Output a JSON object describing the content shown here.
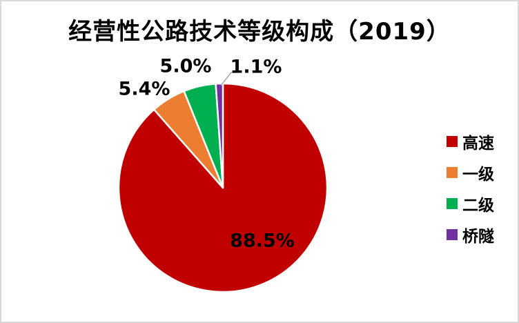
{
  "chart_data": {
    "type": "pie",
    "title": "经营性公路技术等级构成（2019）",
    "unit": "%",
    "slices": [
      {
        "name": "高速",
        "value": 88.5,
        "label": "88.5%",
        "color": "#C00000"
      },
      {
        "name": "一级",
        "value": 5.4,
        "label": "5.4%",
        "color": "#ED7D31"
      },
      {
        "name": "二级",
        "value": 5.0,
        "label": "5.0%",
        "color": "#00B050"
      },
      {
        "name": "桥隧",
        "value": 1.1,
        "label": "1.1%",
        "color": "#7030A0"
      }
    ],
    "legend": {
      "position": "right",
      "items": [
        "高速",
        "一级",
        "二级",
        "桥隧"
      ]
    },
    "layout": {
      "start_angle_deg": 0,
      "direction": "clockwise",
      "center": [
        321,
        270
      ],
      "radius": 151,
      "slice_border_color": "#FFFFFF",
      "leader_line": [
        [
          318,
          122
        ],
        [
          333,
          103
        ],
        [
          341,
          103
        ]
      ],
      "leader_color": "#A6A6A6",
      "background": "#FFFFFF",
      "frame_border_color": "#D9D9D9"
    }
  }
}
